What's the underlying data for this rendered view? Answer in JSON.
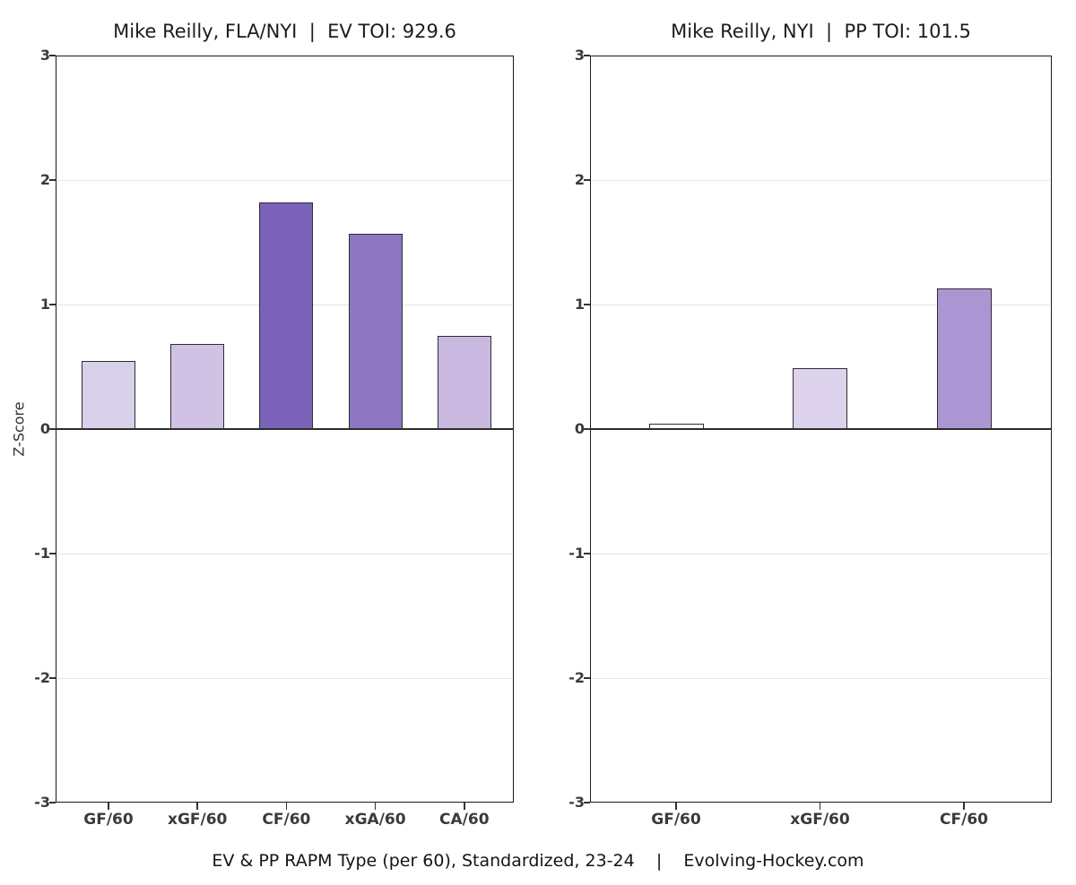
{
  "page": {
    "background": "#ffffff",
    "caption": "EV & PP RAPM Type (per 60), Standardized, 23-24    |    Evolving-Hockey.com"
  },
  "chart_data": [
    {
      "type": "bar",
      "title": "Mike Reilly, FLA/NYI  |  EV TOI: 929.6",
      "xlabel": "",
      "ylabel": "Z-Score",
      "categories": [
        "GF/60",
        "xGF/60",
        "CF/60",
        "xGA/60",
        "CA/60"
      ],
      "values": [
        0.55,
        0.68,
        1.82,
        1.57,
        0.75
      ],
      "bar_colors": [
        "#d9d0e9",
        "#cfc2e4",
        "#7a62b8",
        "#8d77c3",
        "#c9b9e0"
      ],
      "bar_outline": "#2e2e2e",
      "ylim": [
        -3,
        3
      ],
      "yticks": [
        3,
        2,
        1,
        0,
        -1,
        -2,
        -3
      ],
      "grid": "horizontal-light-gray-at-integers",
      "zero_line": true,
      "legend": "none"
    },
    {
      "type": "bar",
      "title": "Mike Reilly, NYI  |  PP TOI: 101.5",
      "xlabel": "",
      "ylabel": "",
      "categories": [
        "GF/60",
        "xGF/60",
        "CF/60"
      ],
      "values": [
        0.04,
        0.49,
        1.13
      ],
      "bar_colors": [
        "#fdfdfd",
        "#ddd2ec",
        "#ab96d3"
      ],
      "bar_outline": "#2e2e2e",
      "ylim": [
        -3,
        3
      ],
      "yticks": [
        3,
        2,
        1,
        0,
        -1,
        -2,
        -3
      ],
      "grid": "horizontal-light-gray-at-integers",
      "zero_line": true,
      "legend": "none"
    }
  ]
}
